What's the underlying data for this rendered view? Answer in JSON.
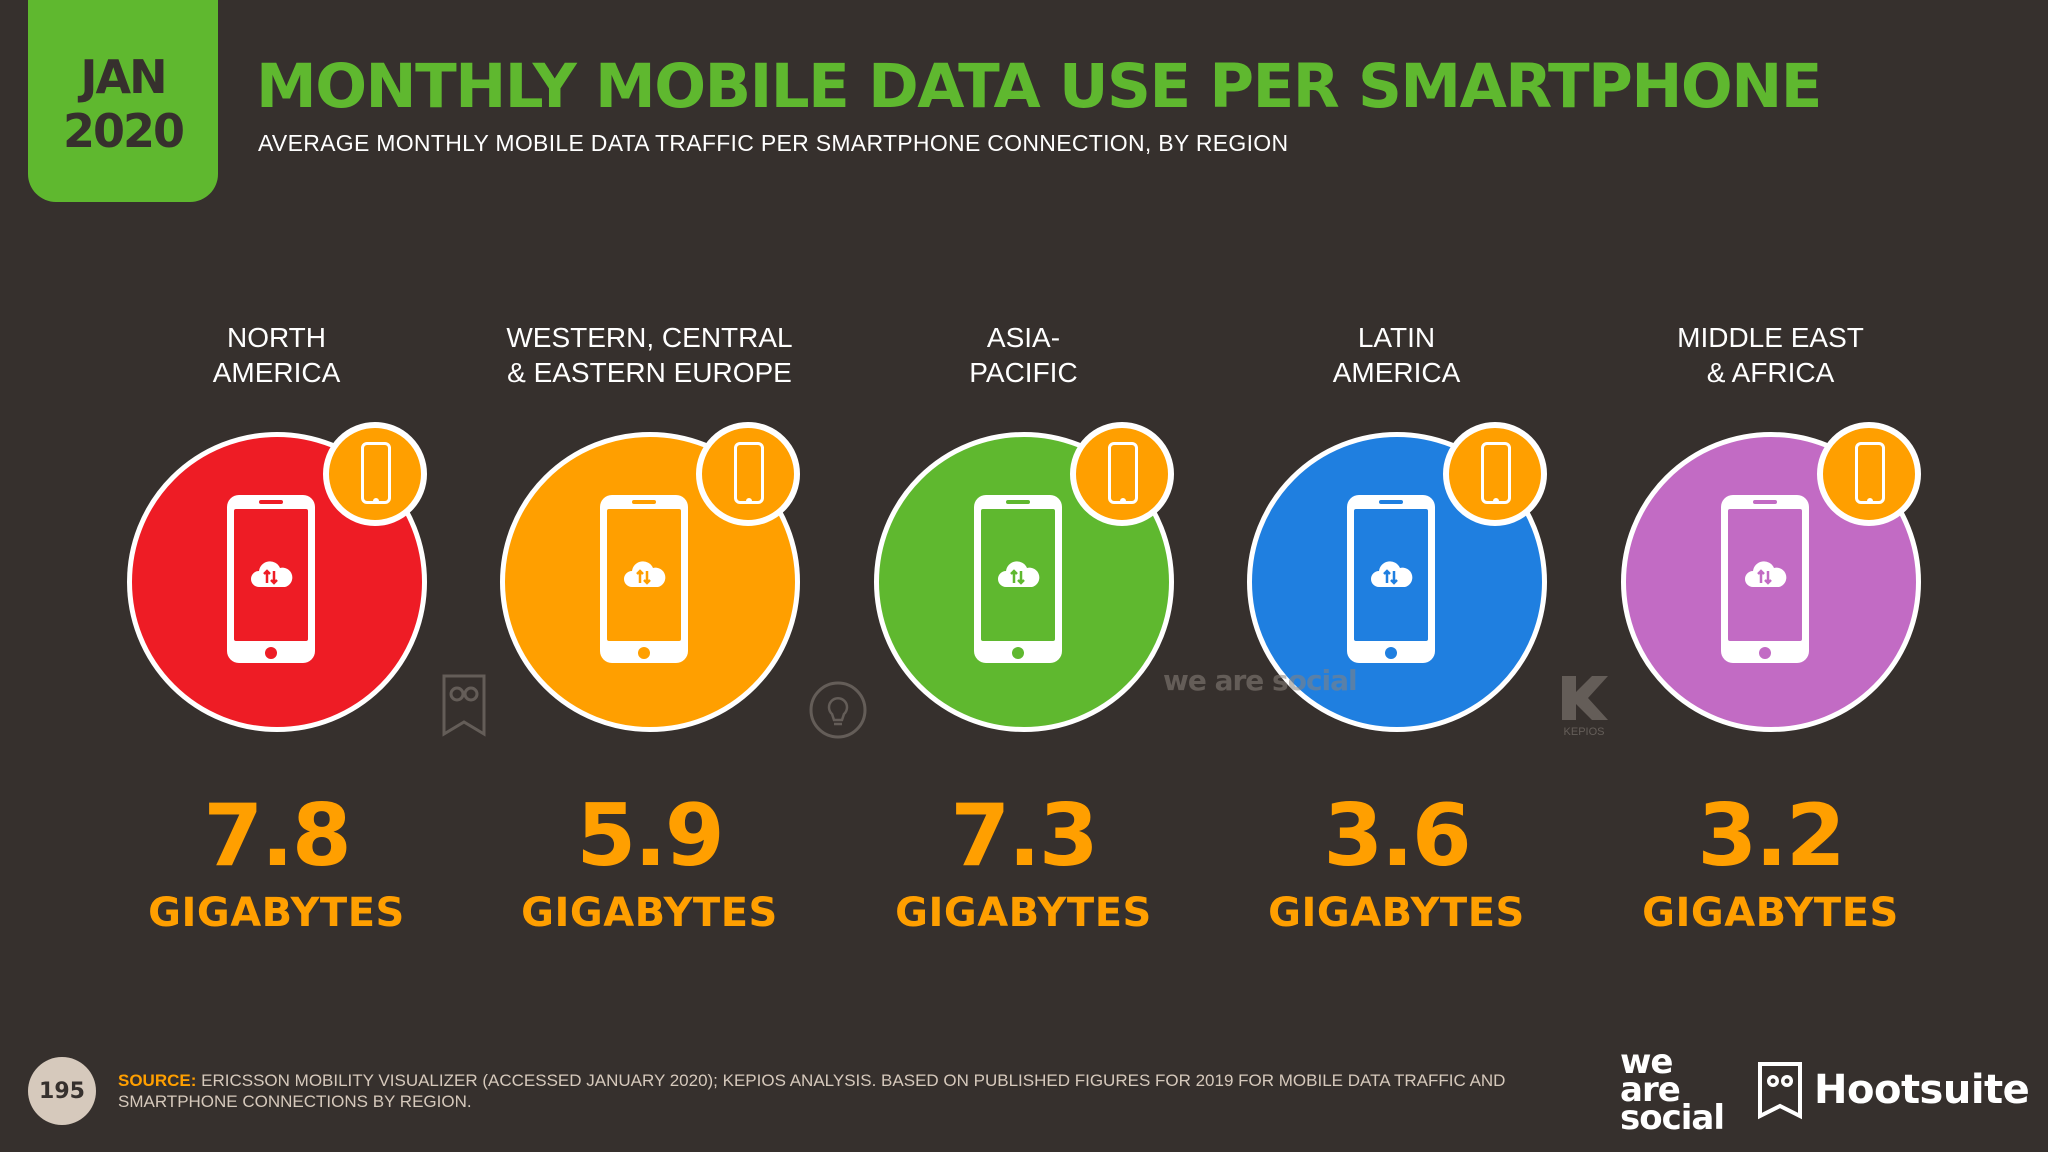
{
  "badge": {
    "month": "JAN",
    "year": "2020"
  },
  "title": "MONTHLY MOBILE DATA USE PER SMARTPHONE",
  "subtitle": "AVERAGE MONTHLY MOBILE DATA TRAFFIC PER SMARTPHONE CONNECTION, BY REGION",
  "regions": [
    {
      "name_line1": "NORTH",
      "name_line2": "AMERICA",
      "value": "7.8",
      "unit": "GIGABYTES",
      "color": "#ee1c25"
    },
    {
      "name_line1": "WESTERN, CENTRAL",
      "name_line2": "& EASTERN EUROPE",
      "value": "5.9",
      "unit": "GIGABYTES",
      "color": "#ff9f00"
    },
    {
      "name_line1": "ASIA-",
      "name_line2": "PACIFIC",
      "value": "7.3",
      "unit": "GIGABYTES",
      "color": "#5fb82f"
    },
    {
      "name_line1": "LATIN",
      "name_line2": "AMERICA",
      "value": "3.6",
      "unit": "GIGABYTES",
      "color": "#1f7fe0"
    },
    {
      "name_line1": "MIDDLE EAST",
      "name_line2": "& AFRICA",
      "value": "3.2",
      "unit": "GIGABYTES",
      "color": "#c26bc4"
    }
  ],
  "badge_color": "#ff9f00",
  "watermarks": {
    "kepios": "KEPIOS",
    "we_are_social": "we are social"
  },
  "footer": {
    "page_number": "195",
    "source_label": "SOURCE:",
    "source_text": "ERICSSON MOBILITY VISUALIZER (ACCESSED JANUARY 2020); KEPIOS ANALYSIS. BASED ON PUBLISHED FIGURES FOR 2019 FOR MOBILE DATA TRAFFIC AND SMARTPHONE CONNECTIONS BY REGION.",
    "logo_we_are_social": [
      "we",
      "are",
      "social"
    ],
    "logo_hootsuite": "Hootsuite"
  }
}
